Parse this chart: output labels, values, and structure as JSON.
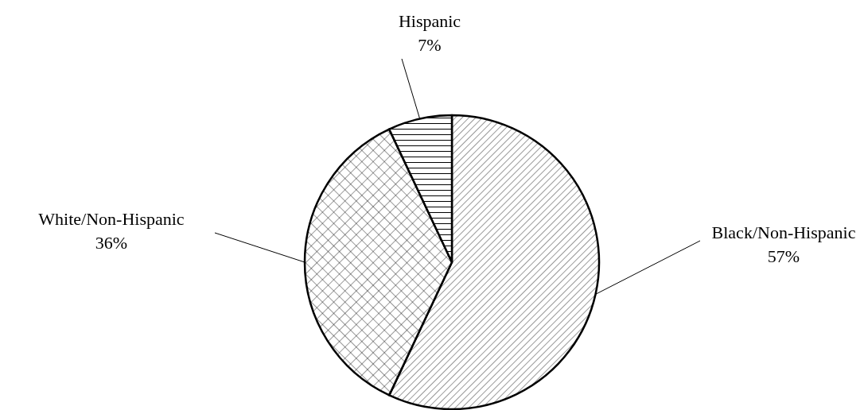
{
  "chart_data": {
    "type": "pie",
    "categories": [
      "Black/Non-Hispanic",
      "White/Non-Hispanic",
      "Hispanic"
    ],
    "values": [
      57,
      36,
      7
    ],
    "value_labels": [
      "57%",
      "36%",
      "7%"
    ],
    "colors": [
      "#000000",
      "#000000",
      "#000000"
    ]
  }
}
